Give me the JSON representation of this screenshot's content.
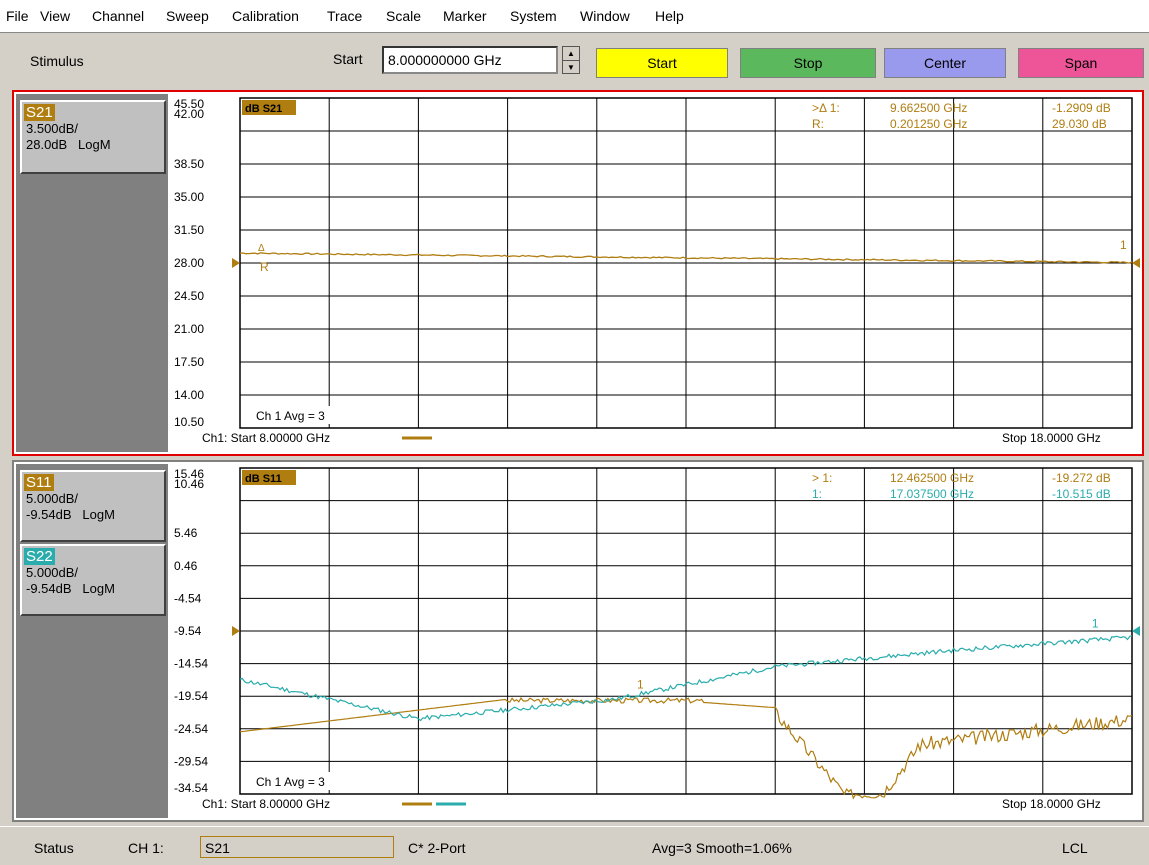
{
  "menu": [
    "File",
    "View",
    "Channel",
    "Sweep",
    "Calibration",
    "Trace",
    "Scale",
    "Marker",
    "System",
    "Window",
    "Help"
  ],
  "toolbar": {
    "section_label": "Stimulus",
    "start_label": "Start",
    "start_value": "8.000000000 GHz",
    "buttons": [
      {
        "label": "Start",
        "color": "#ffff00"
      },
      {
        "label": "Stop",
        "color": "#5cb85c"
      },
      {
        "label": "Center",
        "color": "#9999ee"
      },
      {
        "label": "Span",
        "color": "#ee5599"
      }
    ]
  },
  "colors": {
    "s11": "#b07d10",
    "s21": "#b07d10",
    "s22": "#2aacac",
    "active_border": "#e00000"
  },
  "top_panel": {
    "traces": [
      {
        "name": "S21",
        "scale": "3.500dB/",
        "ref": "28.0dB",
        "format": "LogM"
      }
    ],
    "title_tag": "dB S21",
    "yticks": [
      "45.50",
      "42.00",
      "38.50",
      "35.00",
      "31.50",
      "28.00",
      "24.50",
      "21.00",
      "17.50",
      "14.00",
      "10.50"
    ],
    "markers": [
      {
        "label": ">Δ 1:",
        "freq": "9.662500 GHz",
        "value": "-1.2909 dB"
      },
      {
        "label": "R:",
        "freq": "0.201250 GHz",
        "value": "29.030 dB"
      }
    ],
    "avg": "Ch 1 Avg =  3",
    "start_label": "Ch1: Start 8.00000 GHz",
    "stop_label": "Stop 18.0000 GHz",
    "marker_r": "R",
    "marker_1": "1"
  },
  "bottom_panel": {
    "traces": [
      {
        "name": "S11",
        "scale": "5.000dB/",
        "ref": "-9.54dB",
        "format": "LogM"
      },
      {
        "name": "S22",
        "scale": "5.000dB/",
        "ref": "-9.54dB",
        "format": "LogM"
      }
    ],
    "title_tag": "dB S11",
    "yticks": [
      "15.46",
      "10.46",
      "5.46",
      "0.46",
      "-4.54",
      "-9.54",
      "-14.54",
      "-19.54",
      "-24.54",
      "-29.54",
      "-34.54"
    ],
    "markers": [
      {
        "label": "> 1:",
        "freq": "12.462500 GHz",
        "value": "-19.272 dB",
        "color": "#b07d10"
      },
      {
        "label": "1:",
        "freq": "17.037500 GHz",
        "value": "-10.515 dB",
        "color": "#2aacac"
      }
    ],
    "avg": "Ch 1 Avg =  3",
    "start_label": "Ch1: Start 8.00000 GHz",
    "stop_label": "Stop 18.0000 GHz",
    "marker_1": "1"
  },
  "status": {
    "label": "Status",
    "channel": "CH 1:",
    "active_trace": "S21",
    "cal": "C* 2-Port",
    "avg": "Avg=3 Smooth=1.06%",
    "mode": "LCL"
  }
}
